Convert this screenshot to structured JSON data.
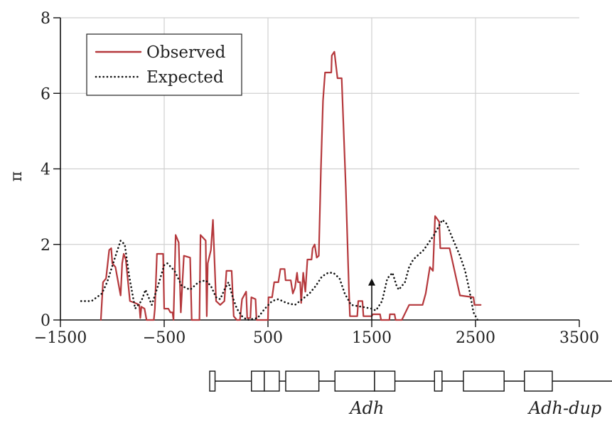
{
  "chart_data": {
    "type": "line",
    "title": "",
    "xlabel": "",
    "ylabel": "π",
    "xlim": [
      -1500,
      3500
    ],
    "ylim": [
      0,
      8
    ],
    "x_ticks": [
      -1500,
      -500,
      500,
      1500,
      2500,
      3500
    ],
    "x_tick_labels": [
      "−1500",
      "−500",
      "500",
      "1500",
      "2500",
      "3500"
    ],
    "y_ticks": [
      0,
      2,
      4,
      6,
      8
    ],
    "y_tick_labels": [
      "0",
      "2",
      "4",
      "6",
      "8"
    ],
    "grid": true,
    "legend": {
      "placement": "top-left"
    },
    "colors": {
      "observed": "#b5383c",
      "expected": "#111111",
      "grid": "#d0d0d0"
    },
    "series": [
      {
        "name": "Observed",
        "style": "solid",
        "points": [
          [
            -1110,
            0
          ],
          [
            -1090,
            1.0
          ],
          [
            -1060,
            1.1
          ],
          [
            -1030,
            1.85
          ],
          [
            -1010,
            1.9
          ],
          [
            -1000,
            1.5
          ],
          [
            -970,
            1.4
          ],
          [
            -930,
            0.8
          ],
          [
            -920,
            0.65
          ],
          [
            -905,
            1.5
          ],
          [
            -890,
            1.75
          ],
          [
            -870,
            1.6
          ],
          [
            -830,
            0.5
          ],
          [
            -780,
            0.45
          ],
          [
            -740,
            0.4
          ],
          [
            -730,
            0.05
          ],
          [
            -720,
            0.35
          ],
          [
            -690,
            0.3
          ],
          [
            -670,
            0
          ],
          [
            -600,
            0
          ],
          [
            -590,
            0.3
          ],
          [
            -570,
            1.75
          ],
          [
            -510,
            1.75
          ],
          [
            -500,
            0.3
          ],
          [
            -460,
            0.3
          ],
          [
            -440,
            0.2
          ],
          [
            -420,
            0.2
          ],
          [
            -410,
            0
          ],
          [
            -390,
            2.25
          ],
          [
            -360,
            2.05
          ],
          [
            -340,
            0.2
          ],
          [
            -310,
            1.7
          ],
          [
            -250,
            1.65
          ],
          [
            -235,
            0
          ],
          [
            -160,
            0
          ],
          [
            -150,
            2.25
          ],
          [
            -100,
            2.1
          ],
          [
            -90,
            0.1
          ],
          [
            -80,
            1.5
          ],
          [
            -50,
            1.85
          ],
          [
            -30,
            2.65
          ],
          [
            -20,
            1.9
          ],
          [
            0,
            0.5
          ],
          [
            40,
            0.4
          ],
          [
            80,
            0.5
          ],
          [
            100,
            1.3
          ],
          [
            150,
            1.3
          ],
          [
            170,
            0.1
          ],
          [
            200,
            0
          ],
          [
            230,
            0
          ],
          [
            250,
            0.55
          ],
          [
            290,
            0.75
          ],
          [
            300,
            0.05
          ],
          [
            330,
            0.05
          ],
          [
            340,
            0.6
          ],
          [
            380,
            0.55
          ],
          [
            390,
            0
          ],
          [
            500,
            0
          ],
          [
            505,
            0.6
          ],
          [
            540,
            0.6
          ],
          [
            560,
            1.0
          ],
          [
            600,
            1.0
          ],
          [
            620,
            1.35
          ],
          [
            660,
            1.35
          ],
          [
            670,
            1.05
          ],
          [
            720,
            1.05
          ],
          [
            740,
            0.7
          ],
          [
            760,
            0.85
          ],
          [
            780,
            1.25
          ],
          [
            790,
            1.0
          ],
          [
            810,
            1.0
          ],
          [
            820,
            0.45
          ],
          [
            840,
            1.25
          ],
          [
            860,
            0.75
          ],
          [
            880,
            1.6
          ],
          [
            920,
            1.6
          ],
          [
            930,
            1.9
          ],
          [
            950,
            2.0
          ],
          [
            970,
            1.65
          ],
          [
            990,
            1.7
          ],
          [
            1010,
            4.0
          ],
          [
            1030,
            5.8
          ],
          [
            1050,
            6.55
          ],
          [
            1110,
            6.55
          ],
          [
            1115,
            7.0
          ],
          [
            1140,
            7.1
          ],
          [
            1170,
            6.4
          ],
          [
            1210,
            6.4
          ],
          [
            1250,
            3.5
          ],
          [
            1280,
            0.8
          ],
          [
            1290,
            0.1
          ],
          [
            1300,
            0.1
          ],
          [
            1360,
            0.1
          ],
          [
            1370,
            0.5
          ],
          [
            1410,
            0.5
          ],
          [
            1420,
            0.1
          ],
          [
            1500,
            0.1
          ],
          [
            1510,
            0.15
          ],
          [
            1580,
            0.15
          ],
          [
            1590,
            0
          ],
          [
            1670,
            0
          ],
          [
            1675,
            0.15
          ],
          [
            1720,
            0.15
          ],
          [
            1730,
            0
          ],
          [
            1790,
            0
          ],
          [
            1860,
            0.4
          ],
          [
            1990,
            0.4
          ],
          [
            2020,
            0.7
          ],
          [
            2060,
            1.4
          ],
          [
            2090,
            1.3
          ],
          [
            2110,
            2.75
          ],
          [
            2150,
            2.6
          ],
          [
            2160,
            1.9
          ],
          [
            2250,
            1.9
          ],
          [
            2350,
            0.65
          ],
          [
            2480,
            0.6
          ],
          [
            2490,
            0.4
          ],
          [
            2550,
            0.4
          ]
        ]
      },
      {
        "name": "Expected",
        "style": "dotted",
        "points": [
          [
            -1300,
            0.5
          ],
          [
            -1200,
            0.5
          ],
          [
            -1100,
            0.7
          ],
          [
            -1050,
            1.0
          ],
          [
            -980,
            1.6
          ],
          [
            -920,
            2.1
          ],
          [
            -880,
            2.0
          ],
          [
            -840,
            1.2
          ],
          [
            -780,
            0.3
          ],
          [
            -720,
            0.5
          ],
          [
            -680,
            0.8
          ],
          [
            -620,
            0.4
          ],
          [
            -560,
            0.9
          ],
          [
            -500,
            1.45
          ],
          [
            -470,
            1.5
          ],
          [
            -400,
            1.3
          ],
          [
            -330,
            0.9
          ],
          [
            -250,
            0.8
          ],
          [
            -170,
            1.0
          ],
          [
            -100,
            1.05
          ],
          [
            -50,
            0.9
          ],
          [
            0,
            0.6
          ],
          [
            40,
            0.55
          ],
          [
            80,
            0.8
          ],
          [
            120,
            1.0
          ],
          [
            160,
            0.6
          ],
          [
            200,
            0.3
          ],
          [
            250,
            0.1
          ],
          [
            300,
            0
          ],
          [
            400,
            0.05
          ],
          [
            470,
            0.3
          ],
          [
            540,
            0.5
          ],
          [
            600,
            0.55
          ],
          [
            680,
            0.45
          ],
          [
            760,
            0.4
          ],
          [
            830,
            0.55
          ],
          [
            900,
            0.7
          ],
          [
            960,
            0.9
          ],
          [
            1020,
            1.15
          ],
          [
            1080,
            1.25
          ],
          [
            1130,
            1.25
          ],
          [
            1190,
            1.1
          ],
          [
            1240,
            0.7
          ],
          [
            1300,
            0.4
          ],
          [
            1400,
            0.35
          ],
          [
            1500,
            0.3
          ],
          [
            1540,
            0.25
          ],
          [
            1600,
            0.5
          ],
          [
            1650,
            1.1
          ],
          [
            1700,
            1.25
          ],
          [
            1740,
            0.9
          ],
          [
            1760,
            0.8
          ],
          [
            1820,
            1.0
          ],
          [
            1860,
            1.4
          ],
          [
            1900,
            1.6
          ],
          [
            2000,
            1.85
          ],
          [
            2100,
            2.25
          ],
          [
            2180,
            2.65
          ],
          [
            2220,
            2.55
          ],
          [
            2280,
            2.15
          ],
          [
            2350,
            1.7
          ],
          [
            2400,
            1.3
          ],
          [
            2440,
            0.8
          ],
          [
            2480,
            0.2
          ],
          [
            2520,
            0
          ]
        ]
      }
    ]
  },
  "gene_diagram": {
    "labels": [
      {
        "id": "adh",
        "text": "Adh",
        "x": 1000
      },
      {
        "id": "adh_dup",
        "text": "Adh-dup",
        "x": 2850
      }
    ],
    "axis_span": [
      -1500,
      3500
    ],
    "line_segments": [
      [
        -450,
        1900
      ],
      [
        1940,
        3350
      ]
    ],
    "boxes": [
      [
        -470,
        -420
      ],
      [
        -80,
        40
      ],
      [
        40,
        180
      ],
      [
        240,
        550
      ],
      [
        700,
        1070
      ],
      [
        1070,
        1260
      ],
      [
        1630,
        1700
      ],
      [
        1900,
        2280
      ],
      [
        2470,
        2730
      ]
    ],
    "pins": [
      -100,
      700
    ]
  },
  "annotations": {
    "arrow_x": 1500,
    "arrow_y_tip": 1.1
  }
}
